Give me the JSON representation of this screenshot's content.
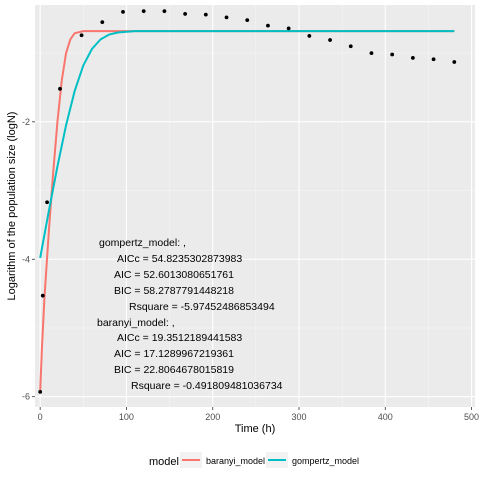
{
  "chart_data": {
    "type": "line",
    "xlabel": "Time (h)",
    "ylabel": "Logarithm of the population size (logN)",
    "xlim": [
      -6,
      504
    ],
    "ylim": [
      -6.15,
      -0.3
    ],
    "x_ticks": [
      0,
      100,
      200,
      300,
      400,
      500
    ],
    "y_ticks": [
      -6,
      -4,
      -2
    ],
    "grid": true,
    "legend_position": "bottom",
    "legend_title": "model",
    "observed_points": {
      "x": [
        0,
        3,
        8,
        23,
        48,
        72,
        96,
        120,
        144,
        168,
        192,
        216,
        240,
        264,
        288,
        312,
        336,
        360,
        384,
        408,
        432,
        456,
        480
      ],
      "y": [
        -5.93,
        -4.53,
        -3.17,
        -1.52,
        -0.74,
        -0.55,
        -0.4,
        -0.39,
        -0.39,
        -0.43,
        -0.44,
        -0.48,
        -0.52,
        -0.6,
        -0.64,
        -0.75,
        -0.81,
        -0.9,
        -1.0,
        -1.02,
        -1.07,
        -1.09,
        -1.13
      ]
    },
    "series": [
      {
        "name": "baranyi_model",
        "color": "#F8766D",
        "x": [
          0,
          2,
          5,
          10,
          15,
          20,
          25,
          30,
          35,
          40,
          50,
          60,
          80,
          120,
          200,
          300,
          400,
          480
        ],
        "y": [
          -5.93,
          -5.3,
          -4.55,
          -3.6,
          -2.75,
          -2.0,
          -1.4,
          -1.0,
          -0.8,
          -0.71,
          -0.68,
          -0.68,
          -0.68,
          -0.68,
          -0.68,
          -0.68,
          -0.68,
          -0.68
        ]
      },
      {
        "name": "gompertz_model",
        "color": "#00BFC4",
        "x": [
          0,
          10,
          20,
          30,
          40,
          50,
          60,
          70,
          80,
          90,
          100,
          110,
          120,
          150,
          200,
          300,
          400,
          480
        ],
        "y": [
          -3.98,
          -3.3,
          -2.65,
          -2.05,
          -1.55,
          -1.18,
          -0.94,
          -0.8,
          -0.73,
          -0.7,
          -0.69,
          -0.68,
          -0.68,
          -0.68,
          -0.68,
          -0.68,
          -0.68,
          -0.68
        ]
      }
    ],
    "annotation_lines": [
      "gompertz_model: ,",
      "AICc = 54.8235302873983",
      "AIC = 52.6013080651761",
      "BIC = 58.2787791448218",
      "Rsquare = -5.97452486853494",
      "baranyi_model: ,",
      "AICc = 19.3512189441583",
      "AIC = 17.1289967219361",
      "BIC = 22.8064678015819",
      "Rsquare = -0.491809481036734"
    ]
  }
}
